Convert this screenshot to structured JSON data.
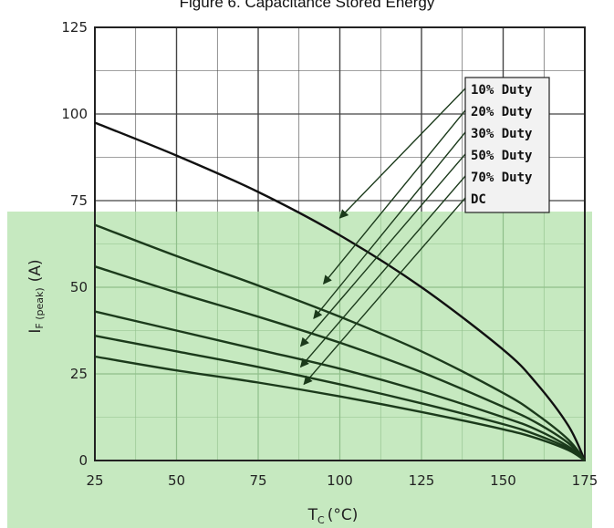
{
  "title": "Figure 6. Capacitance Stored Energy",
  "colors": {
    "highlight": "#c6e9c0",
    "curve": "#1b3a1b",
    "upper_curve": "#111111",
    "grid_upper": "#444444",
    "grid_lower": "#8fbf8a"
  },
  "chart_data": {
    "type": "line",
    "title": "Figure 6. Capacitance Stored Energy",
    "xlabel": "T_C (°C)",
    "xlabel_main": "T",
    "xlabel_sub": "C",
    "xlabel_unit": "(°C)",
    "ylabel": "I_F(peak) (A)",
    "ylabel_main": "I",
    "ylabel_sub": "F (peak)",
    "ylabel_unit": "(A)",
    "xlim": [
      25,
      175
    ],
    "ylim": [
      0,
      125
    ],
    "xticks": [
      25,
      50,
      75,
      100,
      125,
      150,
      175
    ],
    "yticks": [
      0,
      25,
      50,
      75,
      100,
      125
    ],
    "grid": true,
    "legend_position": "top-right",
    "legend": [
      "10% Duty",
      "20% Duty",
      "30% Duty",
      "50% Duty",
      "70% Duty",
      "DC"
    ],
    "series": [
      {
        "name": "10% Duty",
        "x": [
          25,
          50,
          75,
          100,
          125,
          150,
          160,
          170,
          175
        ],
        "y": [
          97.5,
          88,
          77.5,
          65,
          50,
          32,
          22.5,
          10,
          0
        ]
      },
      {
        "name": "20% Duty",
        "x": [
          25,
          50,
          75,
          100,
          125,
          150,
          160,
          170,
          175
        ],
        "y": [
          68,
          59,
          50.5,
          41.5,
          31.5,
          19.5,
          13.5,
          6,
          0
        ]
      },
      {
        "name": "30% Duty",
        "x": [
          25,
          50,
          75,
          100,
          125,
          150,
          160,
          170,
          175
        ],
        "y": [
          56,
          48.5,
          41.5,
          34,
          25.5,
          15.5,
          11,
          5,
          0
        ]
      },
      {
        "name": "50% Duty",
        "x": [
          25,
          50,
          75,
          100,
          125,
          150,
          160,
          170,
          175
        ],
        "y": [
          43,
          37.5,
          32,
          26.5,
          20,
          12.5,
          9,
          4,
          0
        ]
      },
      {
        "name": "70% Duty",
        "x": [
          25,
          50,
          75,
          100,
          125,
          150,
          160,
          170,
          175
        ],
        "y": [
          36,
          31.5,
          27,
          22,
          16.5,
          10.5,
          7.5,
          3.5,
          0
        ]
      },
      {
        "name": "DC",
        "x": [
          25,
          50,
          75,
          100,
          125,
          150,
          160,
          170,
          175
        ],
        "y": [
          30,
          26,
          22.5,
          18.5,
          14,
          9,
          6.5,
          3,
          0
        ]
      }
    ],
    "arrows": [
      {
        "label": "10% Duty",
        "to": [
          100,
          70
        ]
      },
      {
        "label": "20% Duty",
        "to": [
          95,
          51
        ]
      },
      {
        "label": "30% Duty",
        "to": [
          92,
          41
        ]
      },
      {
        "label": "50% Duty",
        "to": [
          88,
          33
        ]
      },
      {
        "label": "70% Duty",
        "to": [
          88,
          27
        ]
      },
      {
        "label": "DC",
        "to": [
          89,
          22
        ]
      }
    ]
  }
}
